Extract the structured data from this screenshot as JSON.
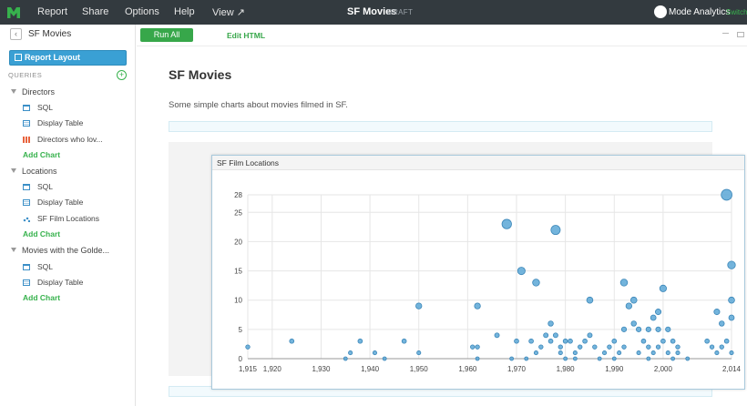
{
  "topbar": {
    "menu": [
      "Report",
      "Share",
      "Options",
      "Help",
      "View ↗"
    ],
    "title": "SF Movies",
    "status": "DRAFT",
    "org": "Mode Analytics",
    "switch_label": "Switch",
    "accent_color": "#37b24d",
    "bg_color": "#333a3f"
  },
  "sidebar": {
    "title": "SF Movies",
    "report_layout_label": "Report Layout",
    "queries_label": "QUERIES",
    "groups": [
      {
        "label": "Directors",
        "items": [
          {
            "label": "SQL",
            "icon": "sql-icon"
          },
          {
            "label": "Display Table",
            "icon": "table-icon"
          },
          {
            "label": "Directors who lov...",
            "icon": "bar-chart-icon"
          }
        ],
        "add_chart": "Add Chart"
      },
      {
        "label": "Locations",
        "items": [
          {
            "label": "SQL",
            "icon": "sql-icon"
          },
          {
            "label": "Display Table",
            "icon": "table-icon"
          },
          {
            "label": "SF Film Locations",
            "icon": "scatter-chart-icon"
          }
        ],
        "add_chart": "Add Chart"
      },
      {
        "label": "Movies with the Golde...",
        "items": [
          {
            "label": "SQL",
            "icon": "sql-icon"
          },
          {
            "label": "Display Table",
            "icon": "table-icon"
          }
        ],
        "add_chart": "Add Chart"
      }
    ]
  },
  "toolbar": {
    "run_all": "Run All",
    "edit_html": "Edit HTML"
  },
  "report": {
    "title": "SF Movies",
    "description": "Some simple charts about movies filmed in SF."
  },
  "chart_data": {
    "type": "scatter",
    "title": "SF Film Locations",
    "xlabel": "",
    "ylabel": "",
    "xlim": [
      1915,
      2014
    ],
    "ylim": [
      0,
      28
    ],
    "x_ticks": [
      "1,915",
      "1,920",
      "1,930",
      "1,940",
      "1,950",
      "1,960",
      "1,970",
      "1,980",
      "1,990",
      "2,000",
      "2,014"
    ],
    "x_tick_values": [
      1915,
      1920,
      1930,
      1940,
      1950,
      1960,
      1970,
      1980,
      1990,
      2000,
      2014
    ],
    "y_ticks": [
      "0",
      "5",
      "10",
      "15",
      "20",
      "25",
      "28"
    ],
    "y_tick_values": [
      0,
      5,
      10,
      15,
      20,
      25,
      28
    ],
    "grid": true,
    "point_color": "#5ba7d6",
    "points": [
      [
        1915,
        2
      ],
      [
        1924,
        3
      ],
      [
        1935,
        0
      ],
      [
        1936,
        1
      ],
      [
        1938,
        3
      ],
      [
        1941,
        1
      ],
      [
        1943,
        0
      ],
      [
        1947,
        3
      ],
      [
        1950,
        1
      ],
      [
        1950,
        9
      ],
      [
        1961,
        2
      ],
      [
        1962,
        2
      ],
      [
        1962,
        0
      ],
      [
        1962,
        9
      ],
      [
        1966,
        4
      ],
      [
        1968,
        23
      ],
      [
        1969,
        0
      ],
      [
        1970,
        3
      ],
      [
        1971,
        15
      ],
      [
        1972,
        0
      ],
      [
        1973,
        3
      ],
      [
        1974,
        13
      ],
      [
        1974,
        1
      ],
      [
        1975,
        2
      ],
      [
        1976,
        4
      ],
      [
        1977,
        3
      ],
      [
        1977,
        6
      ],
      [
        1978,
        22
      ],
      [
        1978,
        4
      ],
      [
        1979,
        2
      ],
      [
        1979,
        1
      ],
      [
        1980,
        3
      ],
      [
        1980,
        0
      ],
      [
        1981,
        3
      ],
      [
        1982,
        1
      ],
      [
        1982,
        0
      ],
      [
        1983,
        2
      ],
      [
        1984,
        3
      ],
      [
        1985,
        10
      ],
      [
        1985,
        4
      ],
      [
        1986,
        2
      ],
      [
        1987,
        0
      ],
      [
        1988,
        1
      ],
      [
        1989,
        2
      ],
      [
        1990,
        3
      ],
      [
        1990,
        0
      ],
      [
        1991,
        1
      ],
      [
        1992,
        13
      ],
      [
        1992,
        5
      ],
      [
        1992,
        2
      ],
      [
        1993,
        9
      ],
      [
        1994,
        10
      ],
      [
        1994,
        6
      ],
      [
        1995,
        5
      ],
      [
        1995,
        1
      ],
      [
        1996,
        3
      ],
      [
        1997,
        2
      ],
      [
        1997,
        5
      ],
      [
        1997,
        0
      ],
      [
        1998,
        7
      ],
      [
        1998,
        1
      ],
      [
        1999,
        5
      ],
      [
        1999,
        8
      ],
      [
        1999,
        2
      ],
      [
        2000,
        12
      ],
      [
        2000,
        3
      ],
      [
        2001,
        5
      ],
      [
        2001,
        1
      ],
      [
        2002,
        3
      ],
      [
        2002,
        0
      ],
      [
        2003,
        1
      ],
      [
        2003,
        2
      ],
      [
        2005,
        0
      ],
      [
        2009,
        3
      ],
      [
        2010,
        2
      ],
      [
        2011,
        8
      ],
      [
        2011,
        1
      ],
      [
        2012,
        6
      ],
      [
        2012,
        2
      ],
      [
        2013,
        28
      ],
      [
        2013,
        3
      ],
      [
        2014,
        16
      ],
      [
        2014,
        10
      ],
      [
        2014,
        7
      ],
      [
        2014,
        1
      ]
    ]
  }
}
